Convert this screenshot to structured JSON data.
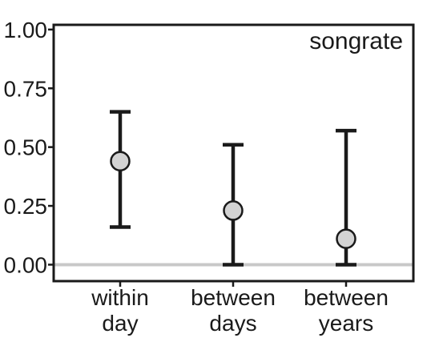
{
  "chart_data": {
    "type": "scatter",
    "title": "songrate",
    "xlabel": "",
    "ylabel": "",
    "ylim": [
      -0.07,
      1.02
    ],
    "yticks": [
      1.0,
      0.75,
      0.5,
      0.25,
      0.0
    ],
    "ytick_labels": [
      "1.00",
      "0.75",
      "0.50",
      "0.25",
      "0.00"
    ],
    "categories": [
      {
        "lines": [
          "within",
          "day"
        ]
      },
      {
        "lines": [
          "between",
          "days"
        ]
      },
      {
        "lines": [
          "between",
          "years"
        ]
      }
    ],
    "series": [
      {
        "values": [
          0.44,
          0.23,
          0.11
        ],
        "lower": [
          0.16,
          0.0,
          0.0
        ],
        "upper": [
          0.65,
          0.51,
          0.57
        ]
      }
    ],
    "reference_line": 0.0,
    "grid": false,
    "colors": {
      "point_fill": "#d3d3d3",
      "stroke": "#1a1a1a",
      "reference_line": "#c8c8c8"
    }
  }
}
